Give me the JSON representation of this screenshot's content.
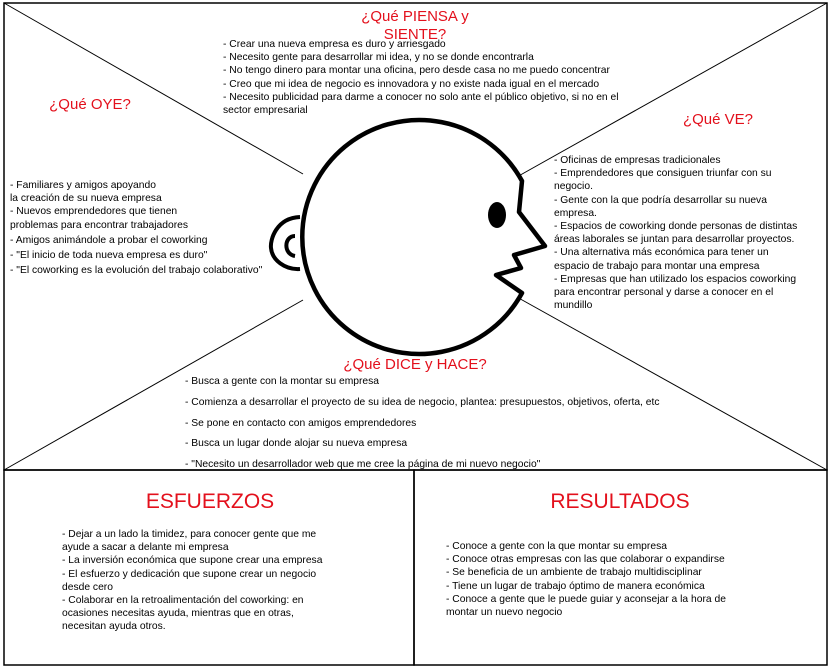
{
  "map": {
    "piensa": {
      "title": "¿Qué PIENSA y\nSIENTE?",
      "lines": [
        "- Crear una nueva empresa es duro y arriesgado",
        "- Necesito gente para desarrollar mi idea, y no se donde encontrarla",
        "- No tengo dinero para montar una oficina, pero desde casa no me puedo concentrar",
        "- Creo que mi idea de negocio es innovadora y no existe nada igual en el mercado",
        "- Necesito publicidad para darme a conocer no solo ante el público objetivo, si no en el",
        "sector empresarial"
      ]
    },
    "oye": {
      "title": "¿Qué OYE?",
      "lines": [
        "- Familiares y amigos apoyando",
        "la creación de su nueva empresa",
        "- Nuevos emprendedores que tienen",
        "problemas para encontrar trabajadores",
        "-  Amigos animándole a probar el coworking",
        "- \"El inicio de toda nueva empresa es duro\"",
        "- \"El coworking es la evolución del trabajo colaborativo\""
      ]
    },
    "ve": {
      "title": "¿Qué VE?",
      "lines": [
        "- Oficinas de empresas tradicionales",
        "- Emprendedores que consiguen triunfar con su",
        "negocio.",
        "- Gente con la que podría desarrollar su nueva",
        "empresa.",
        "- Espacios de coworking donde personas de distintas",
        "áreas laborales se juntan para desarrollar proyectos.",
        "- Una alternativa más económica para tener un",
        "espacio de trabajo para montar una empresa",
        "- Empresas que han utilizado los espacios coworking",
        "para encontrar personal y darse a conocer en el",
        "mundillo"
      ]
    },
    "dice": {
      "title": "¿Qué DICE y HACE?",
      "lines": [
        "- Busca a gente con la montar su empresa",
        "- Comienza a desarrollar el proyecto de su idea de negocio, plantea: presupuestos, objetivos, oferta, etc",
        "- Se pone en contacto con amigos emprendedores",
        "- Busca un lugar donde alojar su nueva empresa",
        "- \"Necesito un desarrollador web que me cree la página de mi nuevo negocio\""
      ]
    }
  },
  "esfuerzos": {
    "title": "ESFUERZOS",
    "lines": [
      "- Dejar a un lado la timidez, para conocer gente que me",
      "ayude a sacar a delante mi empresa",
      "- La inversión económica que supone crear una empresa",
      "- El esfuerzo y dedicación que supone crear un negocio",
      "desde cero",
      "- Colaborar en la retroalimentación del coworking: en",
      "ocasiones necesitas ayuda, mientras que en otras,",
      "necesitan ayuda otros."
    ]
  },
  "resultados": {
    "title": "RESULTADOS",
    "lines": [
      "- Conoce a gente con la que montar su empresa",
      "- Conoce otras empresas con las que colaborar o expandirse",
      "- Se beneficia de un ambiente de trabajo multidisciplinar",
      "- Tiene un lugar de trabajo óptimo de manera económica",
      "- Conoce a gente que le puede guiar y aconsejar a la hora de",
      "montar un nuevo negocio"
    ]
  },
  "colors": {
    "heading": "#e3101c",
    "line": "#000000",
    "background": "#ffffff"
  }
}
